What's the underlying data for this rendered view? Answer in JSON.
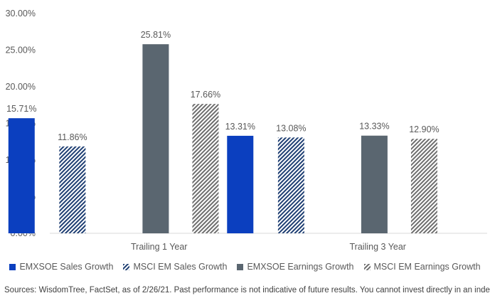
{
  "chart_data": {
    "type": "bar",
    "categories": [
      "Trailing 1 Year",
      "Trailing 3 Year"
    ],
    "series": [
      {
        "name": "EMXSOE Sales Growth",
        "values": [
          15.71,
          13.31
        ],
        "color": "#0b3fbf",
        "pattern": "solid"
      },
      {
        "name": "MSCI EM Sales Growth",
        "values": [
          11.86,
          13.08
        ],
        "color": "#1f3f73",
        "pattern": "hatch"
      },
      {
        "name": "EMXSOE Earnings Growth",
        "values": [
          25.81,
          13.33
        ],
        "color": "#5a6670",
        "pattern": "solid"
      },
      {
        "name": "MSCI EM Earnings Growth",
        "values": [
          17.66,
          12.9
        ],
        "color": "#6e6e6e",
        "pattern": "hatch"
      }
    ],
    "data_labels": [
      [
        "15.71%",
        "13.31%"
      ],
      [
        "11.86%",
        "13.08%"
      ],
      [
        "25.81%",
        "13.33%"
      ],
      [
        "17.66%",
        "12.90%"
      ]
    ],
    "y_ticks": [
      "0.00%",
      "5.00%",
      "10.00%",
      "15.00%",
      "20.00%",
      "25.00%",
      "30.00%"
    ],
    "ylim": [
      0,
      30
    ],
    "grid": false,
    "legend_position": "bottom"
  },
  "source_note": "Sources: WisdomTree, FactSet, as of 2/26/21. Past performance is not indicative of future results. You cannot invest directly in an index."
}
